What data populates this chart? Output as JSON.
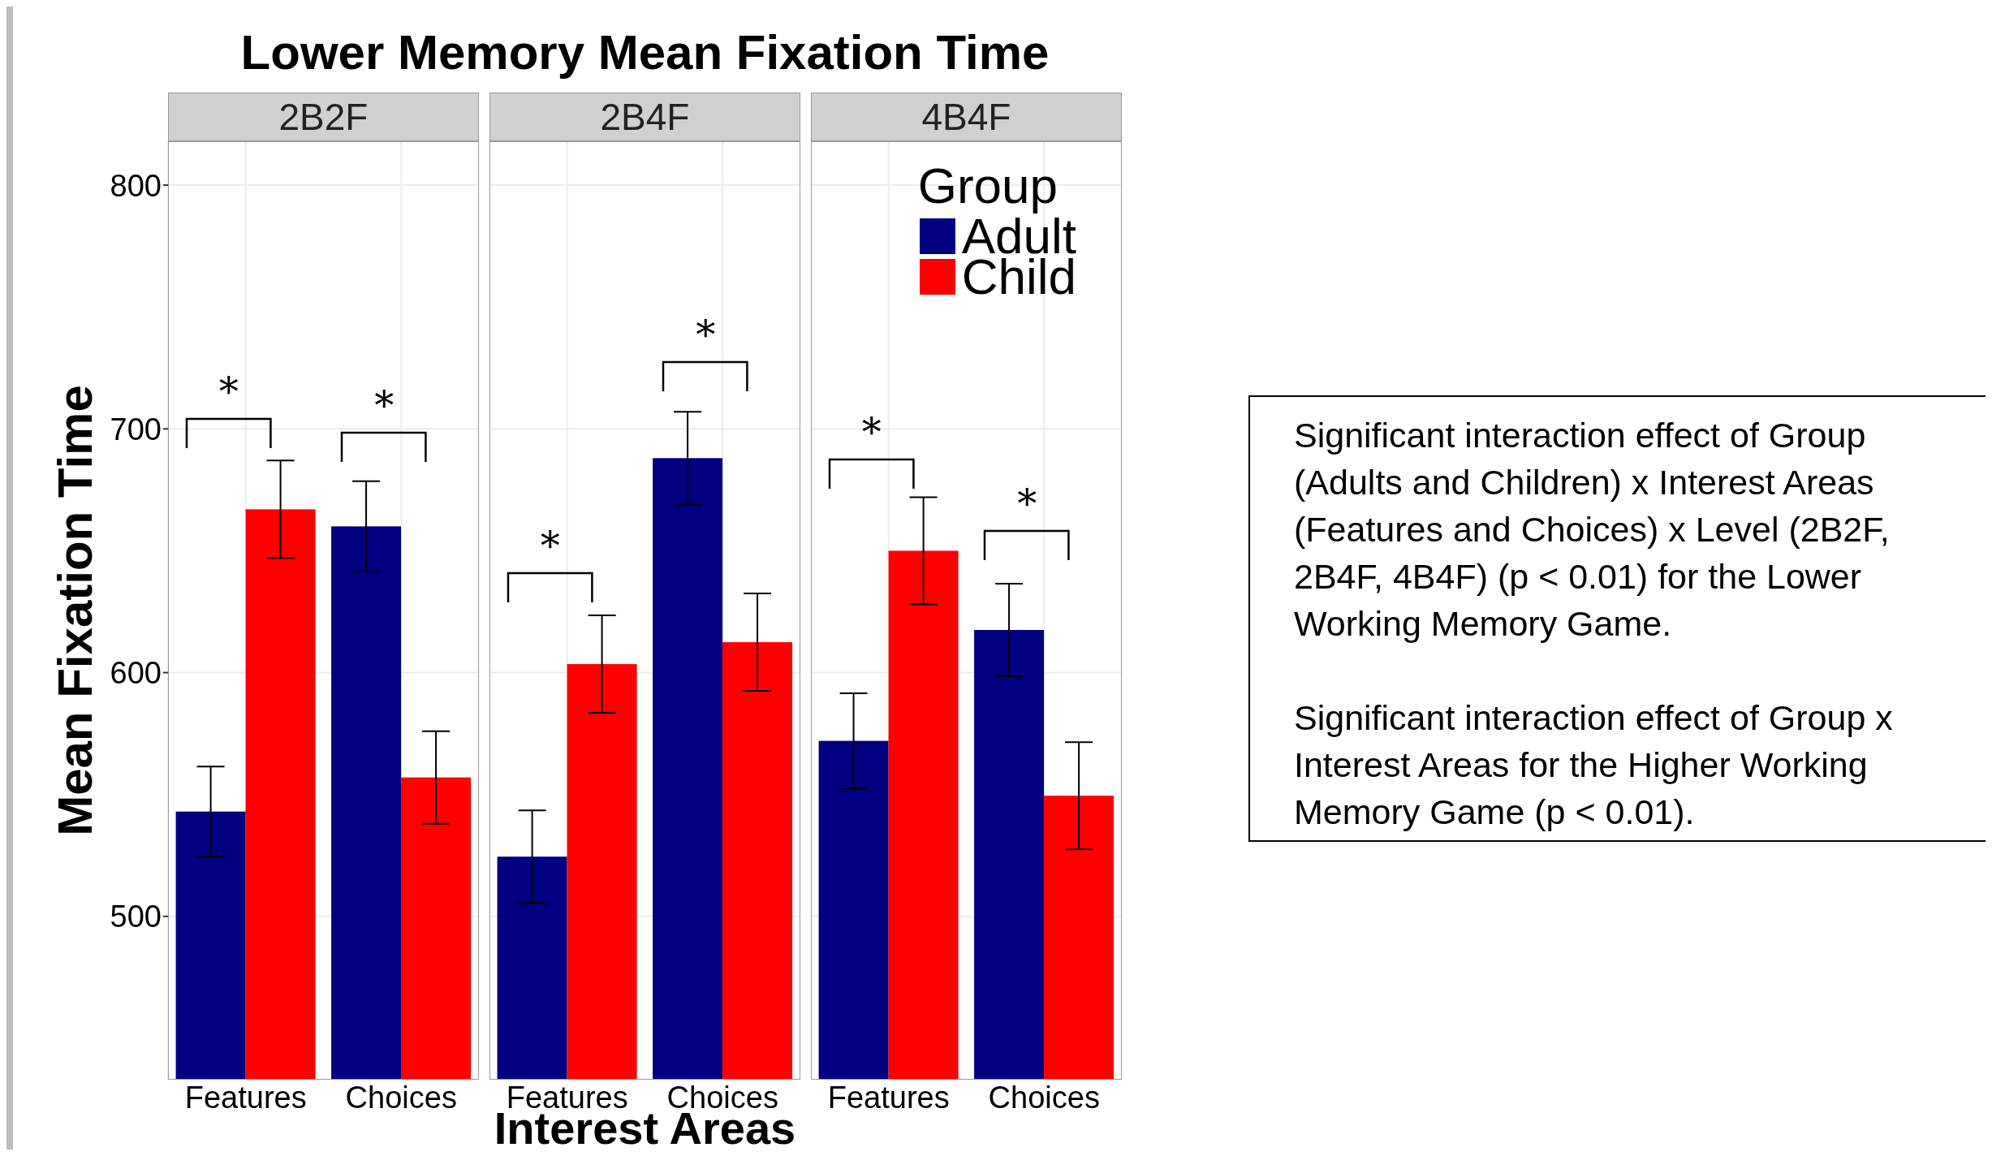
{
  "chart_data": [
    {
      "type": "bar",
      "title": "Lower Memory Mean Fixation Time",
      "subtitle": "2B2F",
      "ylabel": "Mean Fixation Time",
      "categories": [
        "Features",
        "Choices"
      ],
      "ylim": [
        433,
        818
      ],
      "yticks": [
        500,
        600,
        700,
        800
      ],
      "grid": true,
      "series": [
        {
          "color": "#000080",
          "values": [
            543,
            660
          ],
          "errors": [
            [
              524.5,
              561.5
            ],
            [
              641.5,
              678.5
            ]
          ]
        },
        {
          "color": "#ff0000",
          "values": [
            667,
            557
          ],
          "errors": [
            [
              647,
              687
            ],
            [
              538,
              576
            ]
          ]
        }
      ],
      "annotations": [
        "*",
        "*"
      ]
    },
    {
      "type": "bar",
      "subtitle": "2B4F",
      "xlabel": "Interest Areas",
      "categories": [
        "Features",
        "Choices"
      ],
      "ylim": [
        433,
        818
      ],
      "yticks": [
        500,
        600,
        700,
        800
      ],
      "grid": true,
      "tick_labels": "x",
      "series": [
        {
          "color": "#000080",
          "values": [
            524.5,
            688
          ],
          "errors": [
            [
              505.5,
              543.5
            ],
            [
              669,
              707
            ]
          ]
        },
        {
          "color": "#ff0000",
          "values": [
            603.5,
            612.5
          ],
          "errors": [
            [
              583.5,
              623.5
            ],
            [
              592.5,
              632.5
            ]
          ]
        }
      ],
      "annotations": [
        "*",
        "*"
      ]
    },
    {
      "type": "bar",
      "subtitle": "4B4F",
      "categories": [
        "Features",
        "Choices"
      ],
      "ylim": [
        433,
        818
      ],
      "yticks": [
        500,
        600,
        700,
        800
      ],
      "grid": true,
      "tick_labels": "x",
      "legend": "top right",
      "legend_title": "Group",
      "series": [
        {
          "name": "Adult",
          "color": "#000080",
          "values": [
            572,
            617.5
          ],
          "errors": [
            [
              552.5,
              591.5
            ],
            [
              598.5,
              636.5
            ]
          ]
        },
        {
          "name": "Child",
          "color": "#ff0000",
          "values": [
            650,
            549.5
          ],
          "errors": [
            [
              628,
              672
            ],
            [
              527.5,
              571.5
            ]
          ]
        }
      ],
      "annotations": [
        "*",
        "*"
      ]
    },
    {
      "type": "other",
      "annotations": [
        "Significant interaction effect of Group (Adults and Children) x Interest Areas (Features and Choices) x Level (2B2F, 2B4F, 4B4F) (p < 0.01) for the Lower Working Memory Game.",
        "Significant interaction effect of Group x Interest Areas for the Higher Working Memory Game (p < 0.01)."
      ]
    }
  ]
}
